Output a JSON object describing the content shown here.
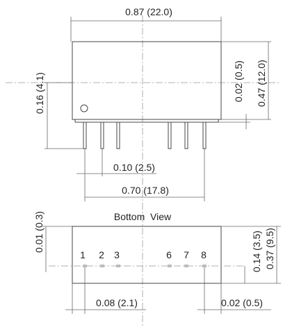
{
  "top_view": {
    "overall_width": "0.87 (22.0)",
    "pin_height": "0.16 (4.1)",
    "standoff": "0.02 (0.5)",
    "overall_height": "0.47 (12.0)",
    "pin_pitch": "0.10 (2.5)",
    "pin_span": "0.70 (17.8)"
  },
  "bottom_view": {
    "title": "Bottom  View",
    "left_offset": "0.01 (0.3)",
    "row_offset": "0.14 (3.5)",
    "body_depth": "0.37 (9.5)",
    "pin1_offset": "0.08 (2.1)",
    "pin8_offset": "0.02 (0.5)",
    "pins": [
      "1",
      "2",
      "3",
      "6",
      "7",
      "8"
    ]
  }
}
